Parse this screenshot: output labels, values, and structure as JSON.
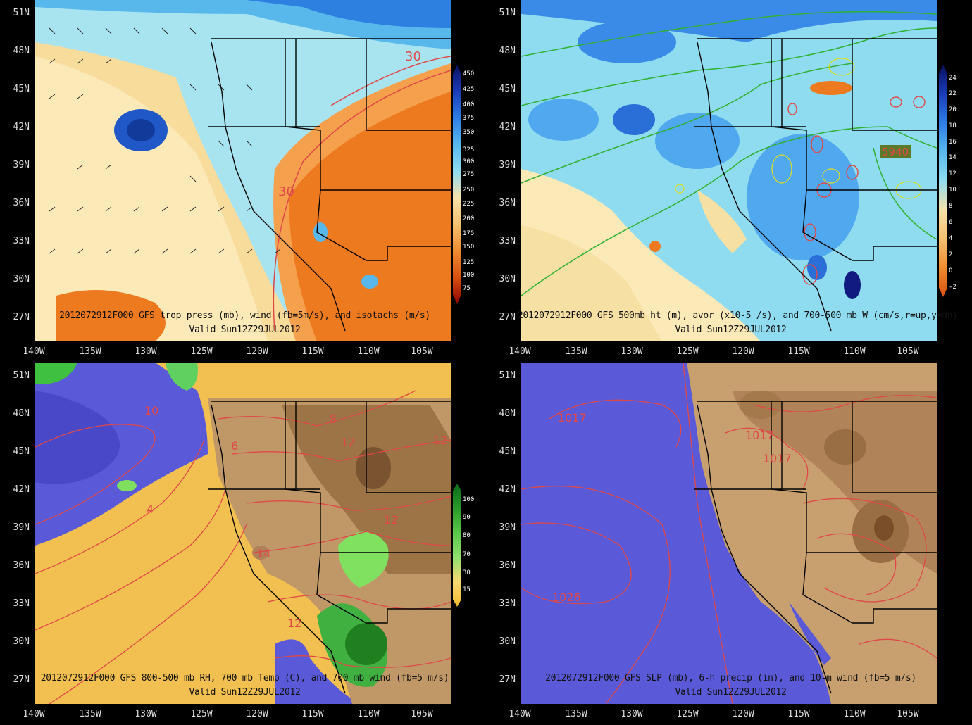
{
  "panels": [
    {
      "title": "2012072912F000 GFS trop press (mb), wind (fb=5m/s), and isotachs (m/s)",
      "valid": "Valid Sun12Z29JUL2012",
      "lat_labels": [
        "51N",
        "48N",
        "45N",
        "42N",
        "39N",
        "36N",
        "33N",
        "30N",
        "27N"
      ],
      "lon_labels": [
        "140W",
        "135W",
        "130W",
        "125W",
        "120W",
        "115W",
        "110W",
        "105W"
      ],
      "colorbar": [
        "450",
        "425",
        "400",
        "375",
        "350",
        "325",
        "300",
        "275",
        "250",
        "225",
        "200",
        "175",
        "150",
        "125",
        "100",
        "75"
      ],
      "contour_labels": [
        "30",
        "30"
      ]
    },
    {
      "title": "2012072912F000 GFS 500mb ht (m), avor (x10-5 /s), and 700-500 mb W (cm/s,r=up,y=dn)",
      "valid": "Valid Sun12Z29JUL2012",
      "lat_labels": [
        "51N",
        "48N",
        "45N",
        "42N",
        "39N",
        "36N",
        "33N",
        "30N",
        "27N"
      ],
      "lon_labels": [
        "140W",
        "135W",
        "130W",
        "125W",
        "120W",
        "115W",
        "110W",
        "105W"
      ],
      "colorbar": [
        "24",
        "22",
        "20",
        "18",
        "16",
        "14",
        "12",
        "10",
        "8",
        "6",
        "4",
        "2",
        "0",
        "-2"
      ],
      "contour_labels": [
        "5940"
      ]
    },
    {
      "title": "2012072912F000 GFS 800-500 mb RH, 700 mb Temp (C), and 700 mb wind (fb=5 m/s)",
      "valid": "Valid Sun12Z29JUL2012",
      "lat_labels": [
        "51N",
        "48N",
        "45N",
        "42N",
        "39N",
        "36N",
        "33N",
        "30N",
        "27N"
      ],
      "lon_labels": [
        "140W",
        "135W",
        "130W",
        "125W",
        "120W",
        "115W",
        "110W",
        "105W"
      ],
      "colorbar": [
        "100",
        "90",
        "80",
        "70",
        "30",
        "15"
      ],
      "contour_labels": [
        "10",
        "8",
        "6",
        "4",
        "12",
        "12",
        "14",
        "12",
        "12"
      ]
    },
    {
      "title": "2012072912F000 GFS SLP (mb), 6-h precip (in), and 10-m wind (fb=5 m/s)",
      "valid": "Valid Sun12Z29JUL2012",
      "lat_labels": [
        "51N",
        "48N",
        "45N",
        "42N",
        "39N",
        "36N",
        "33N",
        "30N",
        "27N"
      ],
      "lon_labels": [
        "140W",
        "135W",
        "130W",
        "125W",
        "120W",
        "115W",
        "110W",
        "105W"
      ],
      "colorbar": [],
      "contour_labels": [
        "1017",
        "1017",
        "1017",
        "1026"
      ]
    }
  ],
  "colors": {
    "ocean_cold": "#5a5ad8",
    "land_brown": "#b08a5a",
    "orange": "#e87020",
    "cyan": "#90e0f0",
    "contour_red": "#e04848",
    "contour_green": "#30b030"
  }
}
